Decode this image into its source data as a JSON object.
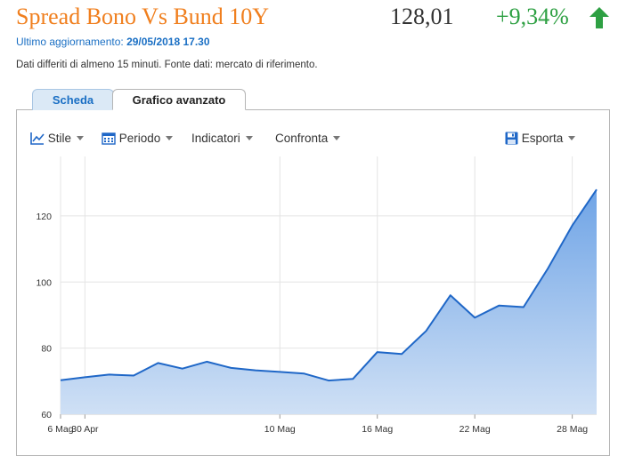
{
  "header": {
    "title": "Spread Bono Vs Bund 10Y",
    "price": "128,01",
    "change": "+9,34%",
    "updated_label": "Ultimo aggiornamento:",
    "updated_value": "29/05/2018 17.30",
    "disclaimer": "Dati differiti di almeno 15 minuti.  Fonte dati: mercato di riferimento.",
    "up_color": "#2ea043",
    "title_color": "#f07f1e"
  },
  "tabs": [
    {
      "label": "Scheda",
      "active": false
    },
    {
      "label": "Grafico avanzato",
      "active": true
    }
  ],
  "toolbar": {
    "style_label": "Stile",
    "period_label": "Periodo",
    "indicators_label": "Indicatori",
    "compare_label": "Confronta",
    "export_label": "Esporta"
  },
  "chart_data": {
    "type": "area",
    "x_tick_labels": [
      "30 Apr",
      "6 Mag",
      "10 Mag",
      "16 Mag",
      "22 Mag",
      "28 Mag"
    ],
    "y_tick_labels": [
      "60",
      "80",
      "100",
      "120"
    ],
    "ylim": [
      60,
      138
    ],
    "x": [
      "27 Apr",
      "30 Apr",
      "1 Mag",
      "2 Mag",
      "3 Mag",
      "4 Mag",
      "7 Mag",
      "8 Mag",
      "9 Mag",
      "10 Mag",
      "11 Mag",
      "14 Mag",
      "15 Mag",
      "16 Mag",
      "17 Mag",
      "18 Mag",
      "21 Mag",
      "22 Mag",
      "23 Mag",
      "24 Mag",
      "25 Mag",
      "28 Mag",
      "29 Mag"
    ],
    "values": [
      70.3,
      71.2,
      72.0,
      71.7,
      75.5,
      73.8,
      75.9,
      74.0,
      73.3,
      72.8,
      72.3,
      70.2,
      70.7,
      78.8,
      78.2,
      85.2,
      96.0,
      89.2,
      92.9,
      92.4,
      104.1,
      117.1,
      128.0
    ],
    "line_color": "#1f67c7",
    "fill_top_color": "#6fa4e6",
    "fill_bottom_color": "#cfe0f5",
    "grid": true
  }
}
